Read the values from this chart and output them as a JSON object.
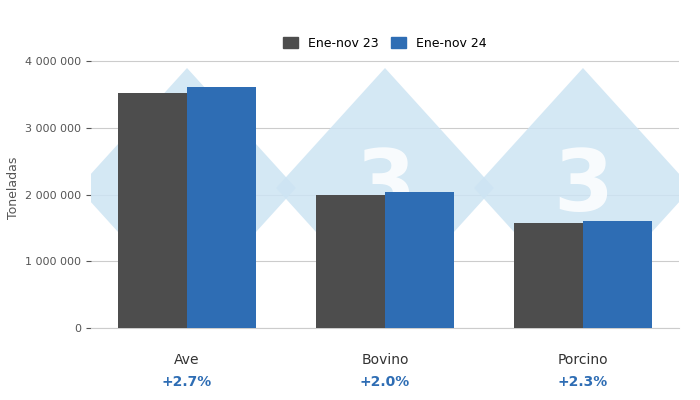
{
  "categories": [
    "Ave",
    "Bovino",
    "Porcino"
  ],
  "values_2023": [
    3520000,
    2000000,
    1570000
  ],
  "values_2024": [
    3620000,
    2040000,
    1606000
  ],
  "variations": [
    "+2.7%",
    "+2.0%",
    "+2.3%"
  ],
  "color_2023": "#4d4d4d",
  "color_2024": "#2e6db4",
  "variation_color": "#2e6db4",
  "ylabel": "Toneladas",
  "legend_2023": "Ene-nov 23",
  "legend_2024": "Ene-nov 24",
  "ylim": [
    0,
    4200000
  ],
  "yticks": [
    0,
    1000000,
    2000000,
    3000000,
    4000000
  ],
  "background_color": "#ffffff",
  "grid_color": "#cccccc",
  "bar_width": 0.35,
  "watermark_color": "#cde4f3",
  "watermark_alpha": 0.85
}
